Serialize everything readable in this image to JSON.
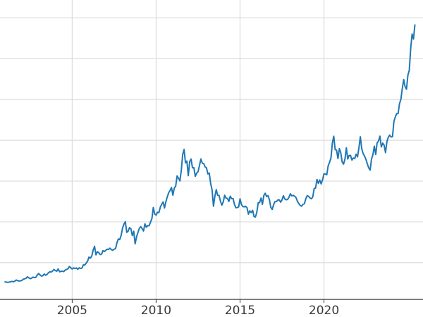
{
  "figure": {
    "background": "#ffffff"
  },
  "chart_data": {
    "type": "line",
    "title": "",
    "xlabel": "",
    "ylabel": "",
    "grid": true,
    "legend": false,
    "grid_color": "#dcdcdc",
    "axis_color": "#333333",
    "tick_label_color": "#3a3a3a",
    "xlim": [
      2000.7,
      2025.9
    ],
    "ylim": [
      50,
      3650
    ],
    "y_gridlines": [
      500,
      1000,
      1500,
      2000,
      2500,
      3000,
      3500
    ],
    "x_ticks": [
      {
        "value": 2005,
        "label": "2005"
      },
      {
        "value": 2010,
        "label": "2010"
      },
      {
        "value": 2015,
        "label": "2015"
      },
      {
        "value": 2020,
        "label": "2020"
      }
    ],
    "series": [
      {
        "name": "series_1",
        "color": "#1f77b4",
        "line_width": 2,
        "start_year": 2001,
        "points_per_year": 12,
        "values": [
          265,
          262,
          258,
          263,
          266,
          271,
          266,
          274,
          287,
          280,
          275,
          277,
          282,
          297,
          302,
          309,
          327,
          314,
          304,
          311,
          323,
          317,
          320,
          348,
          368,
          350,
          336,
          339,
          361,
          346,
          355,
          376,
          388,
          385,
          398,
          417,
          402,
          396,
          424,
          388,
          394,
          395,
          391,
          410,
          416,
          426,
          453,
          438,
          422,
          436,
          429,
          435,
          419,
          437,
          429,
          434,
          473,
          470,
          495,
          517,
          568,
          556,
          582,
          654,
          700,
          596,
          634,
          623,
          599,
          604,
          647,
          636,
          651,
          665,
          662,
          678,
          659,
          651,
          666,
          672,
          743,
          790,
          783,
          834,
          923,
          972,
          1002,
          871,
          886,
          930,
          914,
          833,
          885,
          731,
          815,
          870,
          920,
          942,
          917,
          888,
          976,
          934,
          954,
          953,
          996,
          1040,
          1176,
          1096,
          1083,
          1118,
          1113,
          1180,
          1216,
          1244,
          1170,
          1248,
          1307,
          1358,
          1384,
          1421,
          1327,
          1412,
          1439,
          1563,
          1536,
          1502,
          1628,
          1826,
          1888,
          1722,
          1746,
          1566,
          1737,
          1770,
          1662,
          1664,
          1558,
          1598,
          1614,
          1691,
          1771,
          1719,
          1715,
          1675,
          1662,
          1588,
          1598,
          1469,
          1394,
          1192,
          1313,
          1396,
          1326,
          1324,
          1253,
          1205,
          1244,
          1326,
          1291,
          1288,
          1250,
          1315,
          1285,
          1287,
          1216,
          1173,
          1175,
          1184,
          1283,
          1213,
          1187,
          1184,
          1191,
          1172,
          1095,
          1135,
          1114,
          1142,
          1065,
          1060,
          1118,
          1234,
          1237,
          1292,
          1215,
          1322,
          1351,
          1309,
          1322,
          1272,
          1178,
          1152,
          1211,
          1248,
          1249,
          1268,
          1269,
          1242,
          1269,
          1321,
          1280,
          1271,
          1275,
          1303,
          1345,
          1318,
          1325,
          1315,
          1298,
          1253,
          1224,
          1202,
          1192,
          1215,
          1222,
          1282,
          1321,
          1313,
          1292,
          1283,
          1305,
          1409,
          1414,
          1520,
          1472,
          1513,
          1464,
          1517,
          1589,
          1586,
          1577,
          1687,
          1730,
          1781,
          1966,
          2050,
          1886,
          1879,
          1776,
          1898,
          1848,
          1734,
          1708,
          1768,
          1907,
          1770,
          1814,
          1814,
          1757,
          1783,
          1775,
          1829,
          1797,
          1909,
          2043,
          1897,
          1837,
          1807,
          1766,
          1711,
          1661,
          1634,
          1769,
          1824,
          1928,
          1827,
          1969,
          1990,
          2050,
          1919,
          1965,
          1940,
          1849,
          1984,
          2036,
          2063,
          2040,
          2044,
          2230,
          2286,
          2327,
          2327,
          2448,
          2503,
          2635,
          2744,
          2657,
          2625,
          2798,
          2858,
          3124,
          3302,
          3240,
          3414
        ]
      }
    ]
  }
}
